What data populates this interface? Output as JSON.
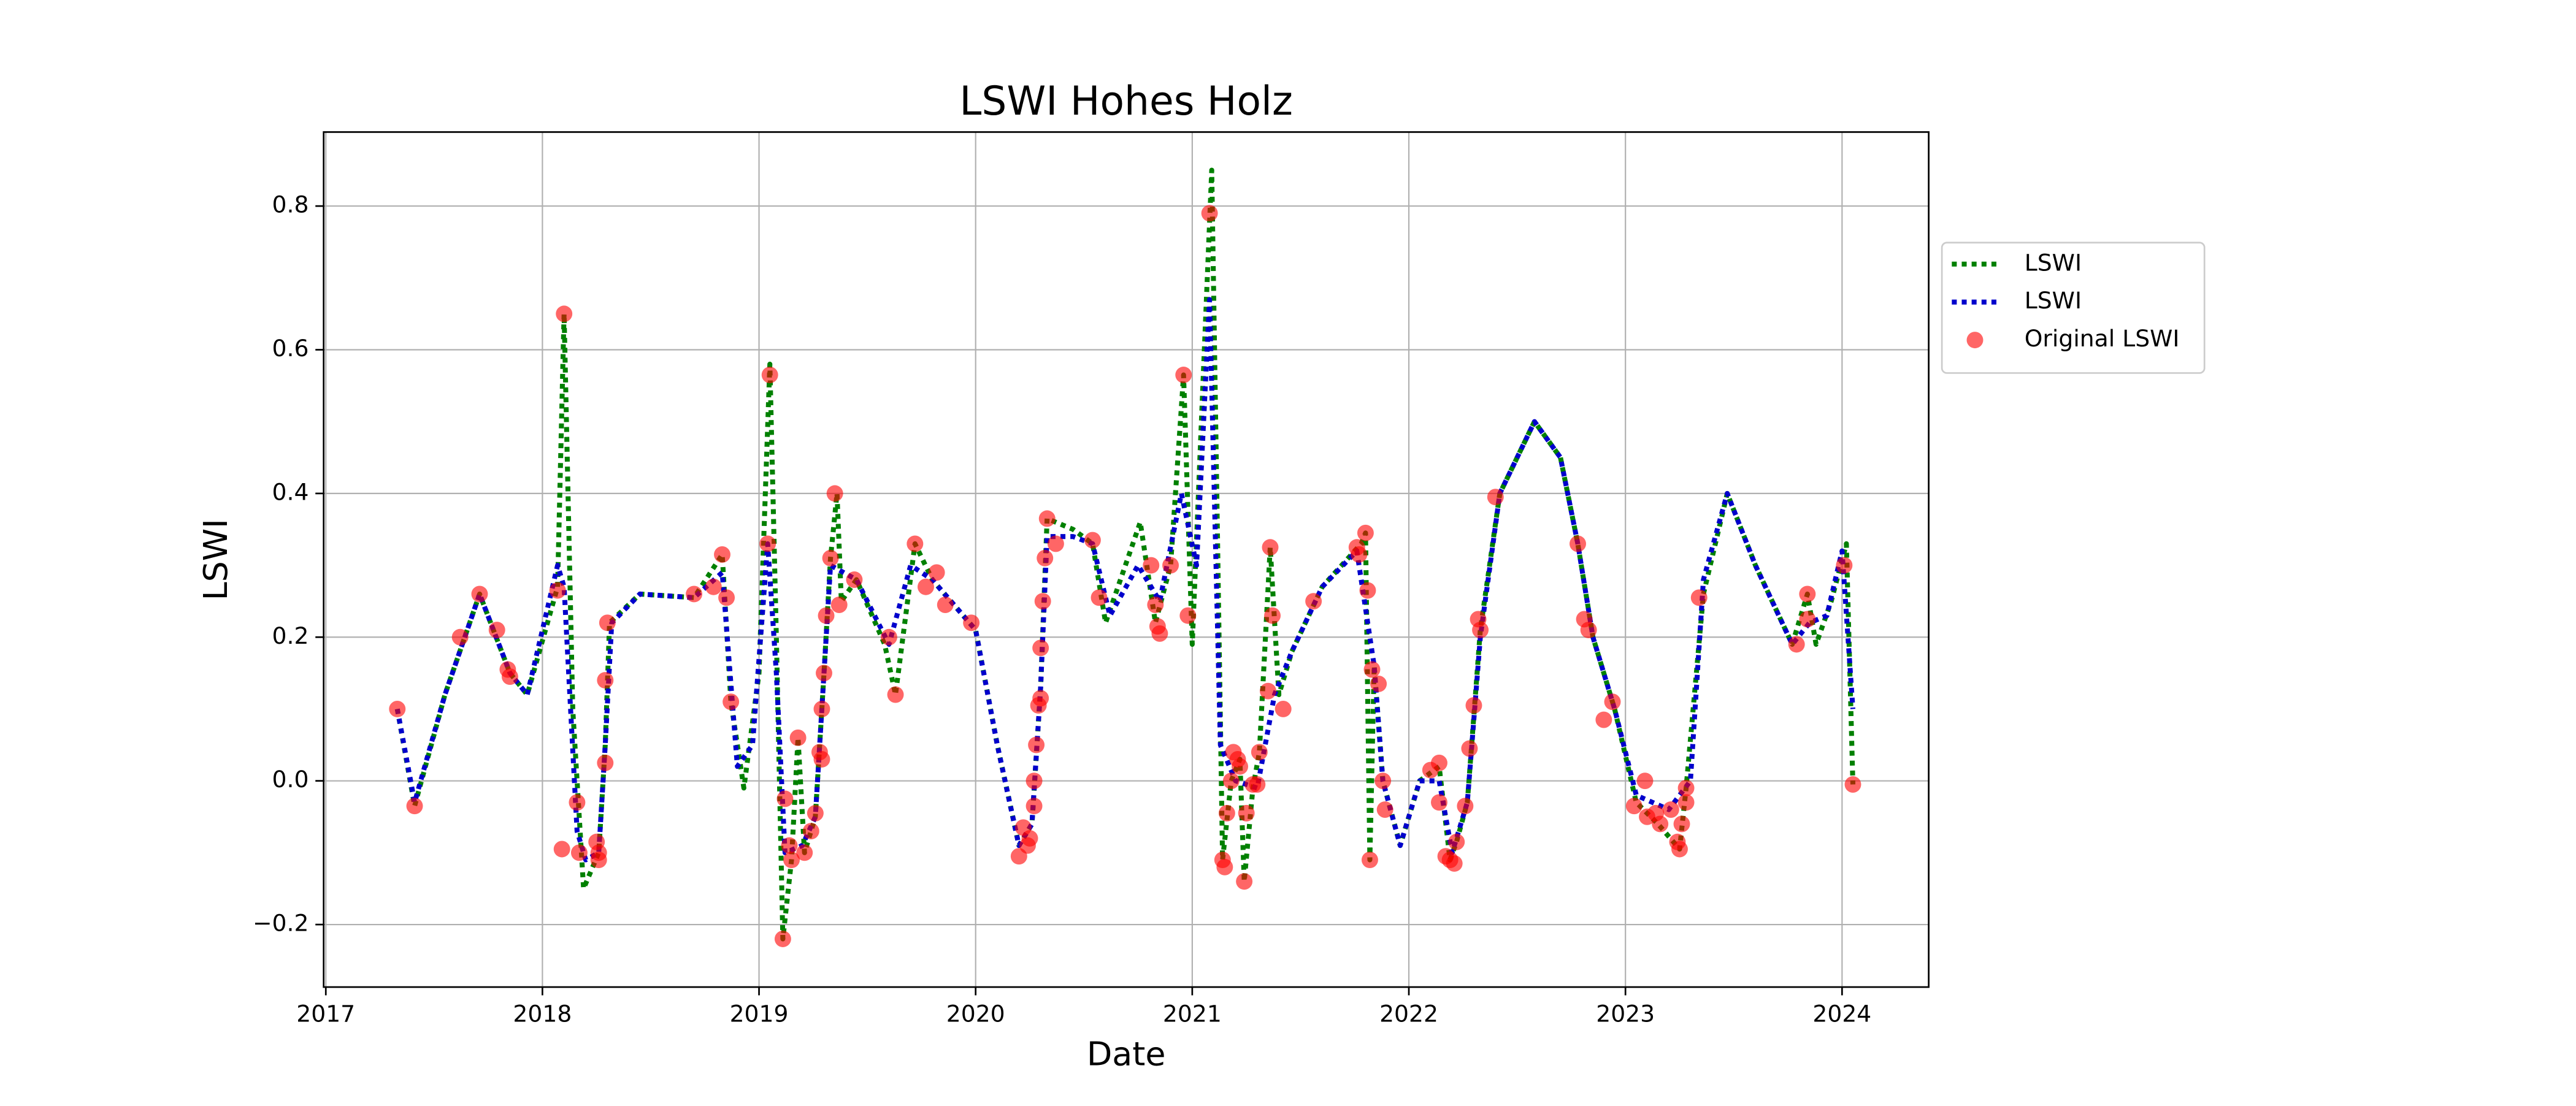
{
  "chart_data": {
    "type": "line",
    "title": "LSWI Hohes Holz",
    "xlabel": "Date",
    "ylabel": "LSWI",
    "xlim": [
      2016.99,
      2024.4
    ],
    "ylim": [
      -0.287,
      0.903
    ],
    "xticks": [
      2017,
      2018,
      2019,
      2020,
      2021,
      2022,
      2023,
      2024
    ],
    "yticks": [
      {
        "value": -0.2,
        "label": "−0.2"
      },
      {
        "value": 0,
        "label": "0.0"
      },
      0.2,
      0.4,
      0.6,
      0.8
    ],
    "grid": true,
    "legend": "right",
    "series": [
      {
        "name": "LSWI",
        "type": "line",
        "style": "dotted",
        "color": "#008000",
        "x": [
          2017.33,
          2017.41,
          2017.55,
          2017.71,
          2017.85,
          2017.93,
          2018.07,
          2018.1,
          2018.14,
          2018.19,
          2018.26,
          2018.29,
          2018.31,
          2018.45,
          2018.7,
          2018.83,
          2018.87,
          2018.93,
          2019.0,
          2019.05,
          2019.08,
          2019.11,
          2019.15,
          2019.18,
          2019.21,
          2019.26,
          2019.3,
          2019.33,
          2019.36,
          2019.38,
          2019.45,
          2019.58,
          2019.63,
          2019.72,
          2019.8,
          2020.0,
          2020.1,
          2020.2,
          2020.26,
          2020.3,
          2020.33,
          2020.45,
          2020.54,
          2020.6,
          2020.76,
          2020.83,
          2020.9,
          2020.96,
          2021.0,
          2021.09,
          2021.14,
          2021.18,
          2021.22,
          2021.24,
          2021.28,
          2021.31,
          2021.36,
          2021.4,
          2021.46,
          2021.6,
          2021.78,
          2021.8,
          2021.82,
          2021.84,
          2021.88,
          2021.96,
          2022.05,
          2022.14,
          2022.19,
          2022.22,
          2022.27,
          2022.33,
          2022.42,
          2022.58,
          2022.7,
          2022.78,
          2022.85,
          2022.95,
          2023.05,
          2023.15,
          2023.25,
          2023.28,
          2023.36,
          2023.47,
          2023.6,
          2023.77,
          2023.84,
          2023.88,
          2023.95,
          2024.02,
          2024.05
        ],
        "values": [
          0.1,
          -0.035,
          0.12,
          0.26,
          0.15,
          0.12,
          0.27,
          0.65,
          0.1,
          -0.15,
          -0.1,
          0.05,
          0.22,
          0.26,
          0.255,
          0.315,
          0.11,
          -0.01,
          0.15,
          0.58,
          0.2,
          -0.22,
          -0.11,
          0.06,
          -0.1,
          -0.05,
          0.15,
          0.31,
          0.4,
          0.25,
          0.28,
          0.19,
          0.12,
          0.33,
          0.28,
          0.21,
          0.05,
          -0.09,
          -0.06,
          0.13,
          0.365,
          0.35,
          0.33,
          0.22,
          0.36,
          0.22,
          0.3,
          0.565,
          0.19,
          0.85,
          -0.11,
          0.0,
          0.03,
          -0.14,
          -0.01,
          0.04,
          0.325,
          0.12,
          0.18,
          0.27,
          0.33,
          0.345,
          -0.11,
          0.16,
          0.0,
          -0.09,
          0.0,
          0.02,
          -0.11,
          -0.085,
          -0.03,
          0.21,
          0.4,
          0.5,
          0.45,
          0.33,
          0.2,
          0.1,
          -0.03,
          -0.06,
          -0.095,
          -0.01,
          0.26,
          0.4,
          0.3,
          0.19,
          0.26,
          0.19,
          0.25,
          0.33,
          -0.005
        ]
      },
      {
        "name": "LSWI",
        "type": "line",
        "style": "dotted",
        "color": "#0000cc",
        "x": [
          2017.33,
          2017.41,
          2017.55,
          2017.71,
          2017.85,
          2017.93,
          2018.07,
          2018.1,
          2018.16,
          2018.2,
          2018.26,
          2018.29,
          2018.32,
          2018.45,
          2018.7,
          2018.83,
          2018.9,
          2018.97,
          2019.04,
          2019.08,
          2019.12,
          2019.2,
          2019.26,
          2019.3,
          2019.33,
          2019.45,
          2019.6,
          2019.7,
          2019.8,
          2020.0,
          2020.1,
          2020.2,
          2020.26,
          2020.3,
          2020.33,
          2020.45,
          2020.54,
          2020.62,
          2020.75,
          2020.85,
          2020.95,
          2021.02,
          2021.08,
          2021.13,
          2021.2,
          2021.3,
          2021.38,
          2021.46,
          2021.6,
          2021.76,
          2021.84,
          2021.88,
          2021.96,
          2022.05,
          2022.14,
          2022.2,
          2022.27,
          2022.33,
          2022.42,
          2022.58,
          2022.7,
          2022.78,
          2022.85,
          2022.95,
          2023.05,
          2023.2,
          2023.3,
          2023.36,
          2023.47,
          2023.6,
          2023.77,
          2023.85,
          2023.93,
          2024.0,
          2024.05
        ],
        "values": [
          0.1,
          -0.03,
          0.12,
          0.26,
          0.15,
          0.12,
          0.3,
          0.27,
          -0.07,
          -0.11,
          -0.1,
          0.05,
          0.22,
          0.26,
          0.255,
          0.29,
          0.02,
          0.05,
          0.33,
          0.15,
          -0.1,
          -0.09,
          -0.05,
          0.15,
          0.3,
          0.28,
          0.19,
          0.3,
          0.28,
          0.21,
          0.05,
          -0.09,
          -0.06,
          0.13,
          0.34,
          0.34,
          0.33,
          0.23,
          0.3,
          0.25,
          0.4,
          0.3,
          0.67,
          0.05,
          0.0,
          -0.01,
          0.12,
          0.18,
          0.27,
          0.32,
          0.16,
          0.0,
          -0.09,
          0.0,
          0.0,
          -0.1,
          -0.03,
          0.2,
          0.4,
          0.5,
          0.45,
          0.33,
          0.2,
          0.1,
          -0.02,
          -0.04,
          0.0,
          0.28,
          0.4,
          0.3,
          0.19,
          0.22,
          0.23,
          0.32,
          0.1
        ]
      },
      {
        "name": "Original LSWI",
        "type": "scatter",
        "color": "#ff0000",
        "alpha": 0.6,
        "x": [
          2017.33,
          2017.41,
          2017.62,
          2017.71,
          2017.79,
          2017.84,
          2017.85,
          2018.07,
          2018.09,
          2018.1,
          2018.16,
          2018.17,
          2018.25,
          2018.26,
          2018.26,
          2018.29,
          2018.29,
          2018.3,
          2018.7,
          2018.79,
          2018.83,
          2018.85,
          2018.87,
          2019.04,
          2019.05,
          2019.11,
          2019.12,
          2019.14,
          2019.15,
          2019.18,
          2019.21,
          2019.24,
          2019.26,
          2019.28,
          2019.29,
          2019.29,
          2019.3,
          2019.31,
          2019.33,
          2019.35,
          2019.37,
          2019.44,
          2019.6,
          2019.63,
          2019.72,
          2019.77,
          2019.82,
          2019.86,
          2019.98,
          2020.2,
          2020.22,
          2020.24,
          2020.25,
          2020.27,
          2020.27,
          2020.28,
          2020.29,
          2020.3,
          2020.3,
          2020.31,
          2020.32,
          2020.33,
          2020.37,
          2020.54,
          2020.57,
          2020.81,
          2020.83,
          2020.84,
          2020.85,
          2020.9,
          2020.96,
          2020.98,
          2021.08,
          2021.14,
          2021.15,
          2021.16,
          2021.18,
          2021.19,
          2021.21,
          2021.22,
          2021.24,
          2021.25,
          2021.28,
          2021.3,
          2021.31,
          2021.35,
          2021.36,
          2021.37,
          2021.42,
          2021.56,
          2021.76,
          2021.77,
          2021.8,
          2021.81,
          2021.82,
          2021.83,
          2021.86,
          2021.88,
          2021.89,
          2022.1,
          2022.14,
          2022.14,
          2022.17,
          2022.19,
          2022.21,
          2022.22,
          2022.26,
          2022.28,
          2022.3,
          2022.32,
          2022.33,
          2022.4,
          2022.78,
          2022.81,
          2022.83,
          2022.9,
          2022.94,
          2023.04,
          2023.09,
          2023.1,
          2023.14,
          2023.16,
          2023.21,
          2023.24,
          2023.25,
          2023.26,
          2023.28,
          2023.28,
          2023.34,
          2023.79,
          2023.84,
          2023.84,
          2024.01,
          2024.05
        ],
        "values": [
          0.1,
          -0.035,
          0.2,
          0.26,
          0.21,
          0.155,
          0.145,
          0.265,
          -0.095,
          0.65,
          -0.03,
          -0.1,
          -0.085,
          -0.11,
          -0.1,
          0.025,
          0.14,
          0.22,
          0.26,
          0.27,
          0.315,
          0.255,
          0.11,
          0.33,
          0.565,
          -0.22,
          -0.025,
          -0.09,
          -0.11,
          0.06,
          -0.1,
          -0.07,
          -0.045,
          0.04,
          0.03,
          0.1,
          0.15,
          0.23,
          0.31,
          0.4,
          0.245,
          0.28,
          0.2,
          0.12,
          0.33,
          0.27,
          0.29,
          0.245,
          0.22,
          -0.105,
          -0.065,
          -0.09,
          -0.08,
          -0.035,
          0.0,
          0.05,
          0.105,
          0.115,
          0.185,
          0.25,
          0.31,
          0.365,
          0.33,
          0.335,
          0.255,
          0.3,
          0.245,
          0.215,
          0.205,
          0.3,
          0.565,
          0.23,
          0.79,
          -0.11,
          -0.12,
          -0.045,
          0.0,
          0.04,
          0.03,
          0.02,
          -0.14,
          -0.045,
          -0.005,
          -0.005,
          0.04,
          0.125,
          0.325,
          0.23,
          0.1,
          0.25,
          0.325,
          0.315,
          0.345,
          0.265,
          -0.11,
          0.155,
          0.135,
          0.0,
          -0.04,
          0.015,
          0.025,
          -0.03,
          -0.105,
          -0.11,
          -0.115,
          -0.085,
          -0.035,
          0.045,
          0.105,
          0.225,
          0.21,
          0.395,
          0.33,
          0.225,
          0.21,
          0.085,
          0.11,
          -0.035,
          0.0,
          -0.05,
          -0.045,
          -0.06,
          -0.04,
          -0.085,
          -0.095,
          -0.06,
          -0.03,
          -0.01,
          0.255,
          0.19,
          0.225,
          0.26,
          0.3,
          -0.005
        ]
      }
    ]
  }
}
